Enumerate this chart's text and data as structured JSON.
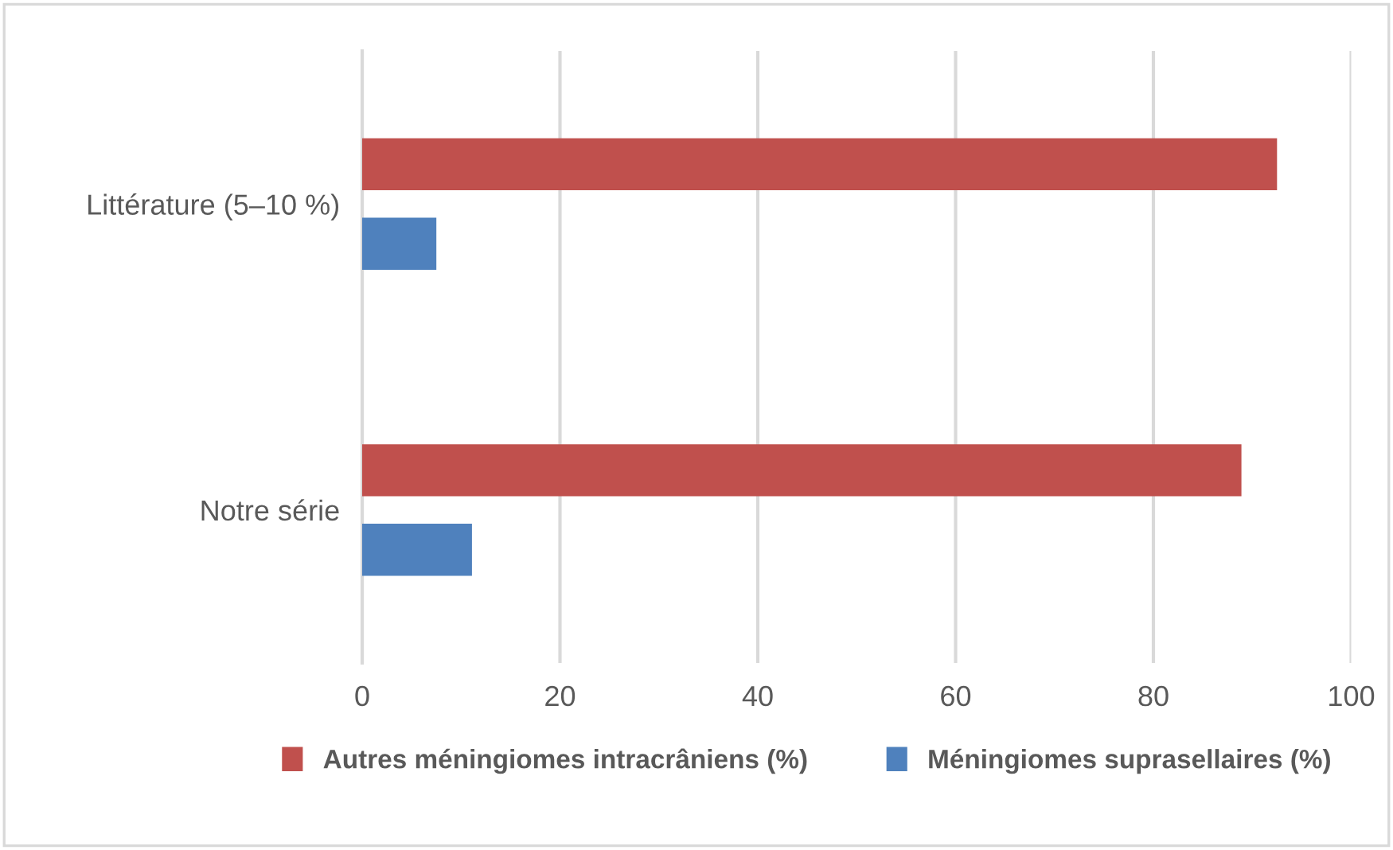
{
  "chart_data": {
    "type": "bar",
    "orientation": "horizontal",
    "categories": [
      "Littérature (5–10 %)",
      "Notre série"
    ],
    "series": [
      {
        "name": "Autres méningiomes intracrâniens (%)",
        "color": "#c0504d",
        "values": [
          92.5,
          88.9
        ]
      },
      {
        "name": "Méningiomes suprasellaires (%)",
        "color": "#4f81bd",
        "values": [
          7.5,
          11.1
        ]
      }
    ],
    "xlim": [
      0,
      100
    ],
    "xticks": [
      0,
      20,
      40,
      60,
      80,
      100
    ],
    "grid": "x",
    "legend": "bottom"
  }
}
